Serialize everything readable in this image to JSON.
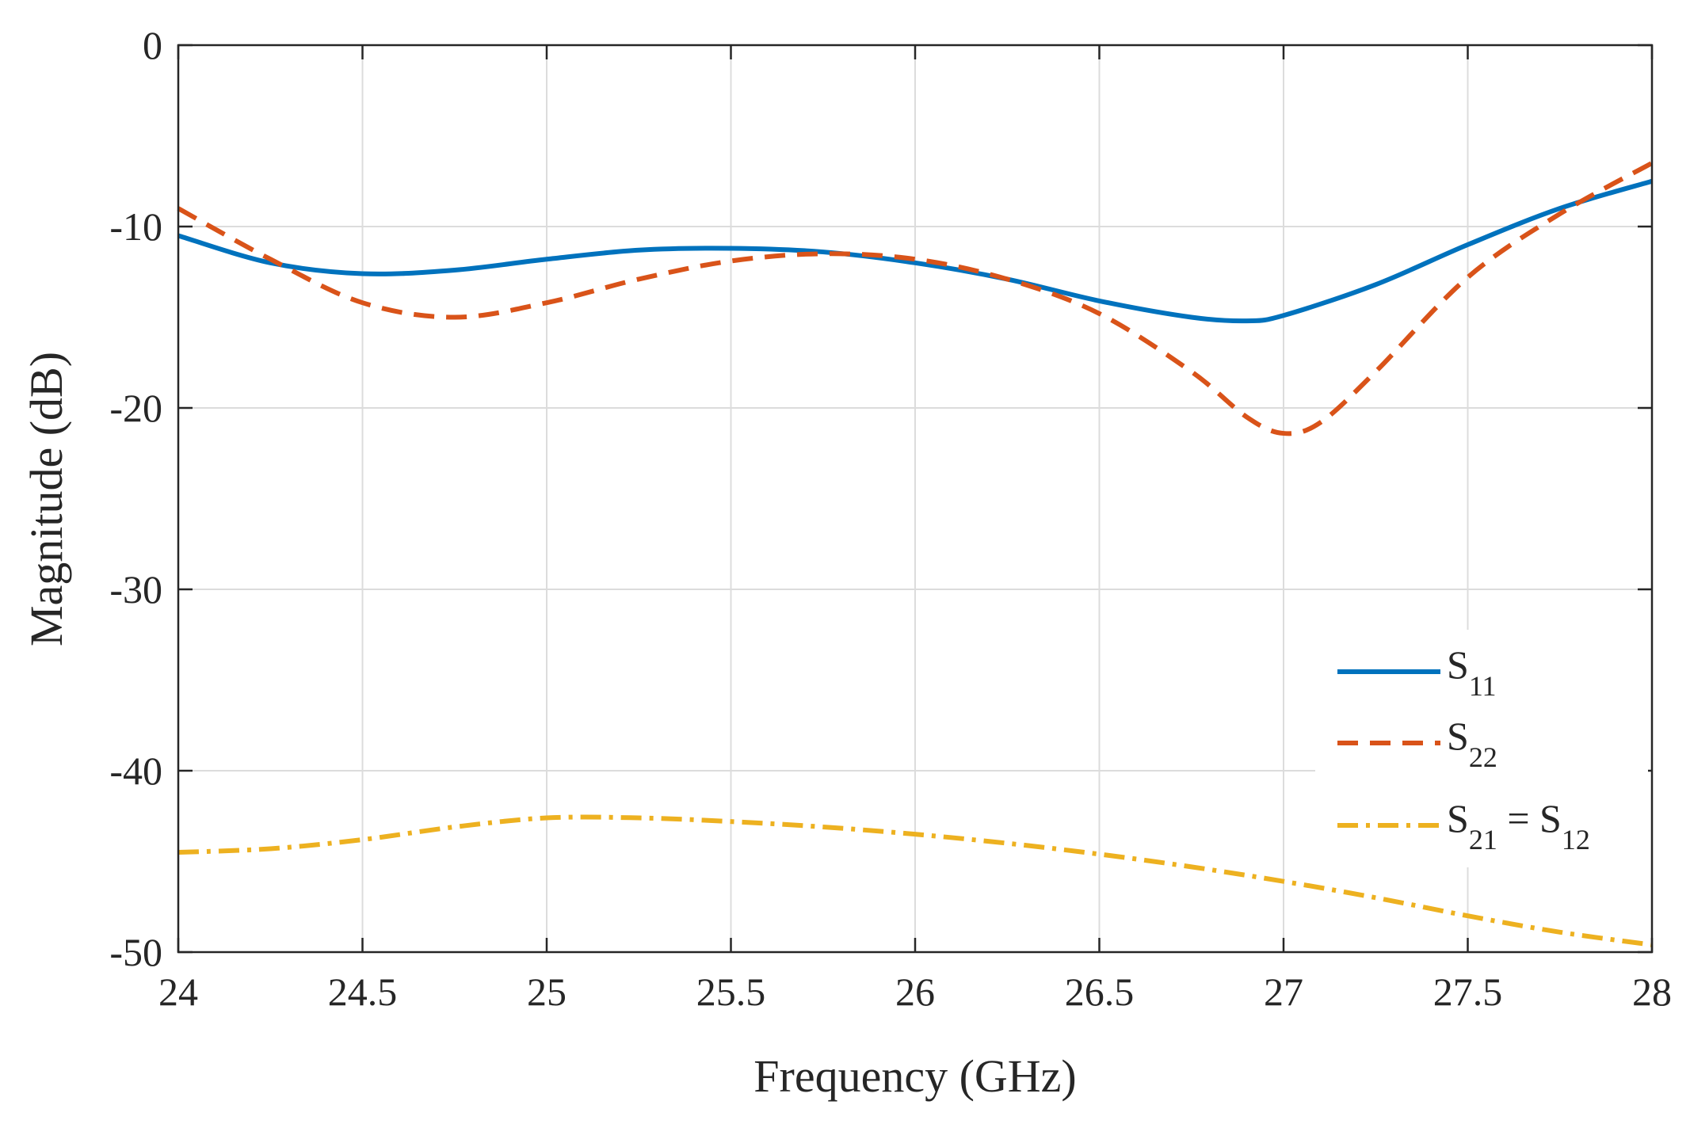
{
  "chart_data": {
    "type": "line",
    "title": "",
    "xlabel": "Frequency (GHz)",
    "ylabel": "Magnitude (dB)",
    "xlim": [
      24,
      28
    ],
    "ylim": [
      -50,
      0
    ],
    "xticks": [
      24,
      24.5,
      25,
      25.5,
      26,
      26.5,
      27,
      27.5,
      28
    ],
    "xtick_labels": [
      "24",
      "24.5",
      "25",
      "25.5",
      "26",
      "26.5",
      "27",
      "27.5",
      "28"
    ],
    "yticks": [
      0,
      -10,
      -20,
      -30,
      -40,
      -50
    ],
    "ytick_labels": [
      "0",
      "-10",
      "-20",
      "-30",
      "-40",
      "-50"
    ],
    "grid": true,
    "legend_position": "bottom-right",
    "series": [
      {
        "name": "S11",
        "label_main": "S",
        "label_sub": "11",
        "label_rest": "",
        "label_sub2": "",
        "color": "#0072BD",
        "style": "solid",
        "x": [
          24,
          24.25,
          24.5,
          24.75,
          25,
          25.25,
          25.5,
          25.75,
          26,
          26.25,
          26.5,
          26.75,
          26.9,
          27,
          27.25,
          27.5,
          27.75,
          28
        ],
        "y": [
          -10.5,
          -12.0,
          -12.6,
          -12.4,
          -11.8,
          -11.3,
          -11.2,
          -11.4,
          -12.0,
          -12.9,
          -14.1,
          -15.0,
          -15.2,
          -14.9,
          -13.2,
          -11.0,
          -9.0,
          -7.5
        ]
      },
      {
        "name": "S22",
        "label_main": "S",
        "label_sub": "22",
        "label_rest": "",
        "label_sub2": "",
        "color": "#D95319",
        "style": "dashed",
        "x": [
          24,
          24.25,
          24.5,
          24.75,
          25,
          25.25,
          25.5,
          25.75,
          26,
          26.25,
          26.5,
          26.75,
          26.9,
          27,
          27.1,
          27.25,
          27.5,
          27.75,
          28
        ],
        "y": [
          -9.0,
          -11.8,
          -14.2,
          -15.0,
          -14.2,
          -12.9,
          -11.9,
          -11.5,
          -11.8,
          -12.9,
          -14.8,
          -18.0,
          -20.5,
          -21.4,
          -20.8,
          -18.0,
          -12.8,
          -9.3,
          -6.5
        ]
      },
      {
        "name": "S21 = S12",
        "label_main": "S",
        "label_sub": "21",
        "label_rest": " = S",
        "label_sub2": "12",
        "color": "#EDB120",
        "style": "dashdot",
        "x": [
          24,
          24.25,
          24.5,
          24.75,
          25,
          25.25,
          25.5,
          25.75,
          26,
          26.25,
          26.5,
          26.75,
          27,
          27.25,
          27.5,
          27.75,
          28
        ],
        "y": [
          -44.5,
          -44.3,
          -43.8,
          -43.1,
          -42.6,
          -42.6,
          -42.8,
          -43.1,
          -43.5,
          -44.0,
          -44.6,
          -45.3,
          -46.1,
          -47.0,
          -48.0,
          -48.9,
          -49.6
        ]
      }
    ]
  }
}
